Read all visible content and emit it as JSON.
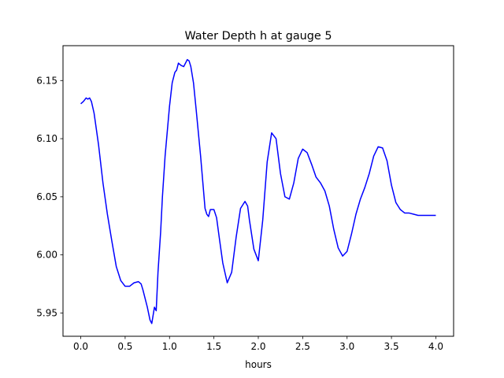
{
  "chart_data": {
    "type": "line",
    "title": "Water Depth h at gauge 5",
    "xlabel": "hours",
    "ylabel": "",
    "xlim": [
      -0.2,
      4.2
    ],
    "ylim": [
      5.93,
      6.18
    ],
    "xticks": [
      0.0,
      0.5,
      1.0,
      1.5,
      2.0,
      2.5,
      3.0,
      3.5,
      4.0
    ],
    "xtick_labels": [
      "0.0",
      "0.5",
      "1.0",
      "1.5",
      "2.0",
      "2.5",
      "3.0",
      "3.5",
      "4.0"
    ],
    "yticks": [
      5.95,
      6.0,
      6.05,
      6.1,
      6.15
    ],
    "ytick_labels": [
      "5.95",
      "6.00",
      "6.05",
      "6.10",
      "6.15"
    ],
    "grid": false,
    "series": [
      {
        "color": "#0000ff",
        "x": [
          0.0,
          0.03,
          0.06,
          0.08,
          0.1,
          0.12,
          0.15,
          0.2,
          0.25,
          0.3,
          0.35,
          0.4,
          0.45,
          0.5,
          0.55,
          0.6,
          0.65,
          0.68,
          0.7,
          0.75,
          0.78,
          0.8,
          0.83,
          0.85,
          0.87,
          0.9,
          0.92,
          0.95,
          1.0,
          1.03,
          1.06,
          1.08,
          1.1,
          1.13,
          1.16,
          1.2,
          1.22,
          1.24,
          1.27,
          1.3,
          1.35,
          1.4,
          1.42,
          1.44,
          1.46,
          1.5,
          1.53,
          1.56,
          1.6,
          1.65,
          1.7,
          1.75,
          1.8,
          1.85,
          1.88,
          1.9,
          1.95,
          2.0,
          2.05,
          2.1,
          2.15,
          2.2,
          2.25,
          2.3,
          2.35,
          2.4,
          2.45,
          2.5,
          2.55,
          2.6,
          2.65,
          2.7,
          2.75,
          2.8,
          2.85,
          2.9,
          2.95,
          3.0,
          3.05,
          3.1,
          3.15,
          3.2,
          3.25,
          3.3,
          3.35,
          3.4,
          3.45,
          3.5,
          3.55,
          3.6,
          3.65,
          3.7,
          3.75,
          3.8,
          3.85,
          3.9,
          3.95,
          4.0
        ],
        "y": [
          6.13,
          6.132,
          6.135,
          6.134,
          6.135,
          6.132,
          6.122,
          6.095,
          6.062,
          6.035,
          6.012,
          5.99,
          5.978,
          5.973,
          5.973,
          5.976,
          5.977,
          5.975,
          5.97,
          5.955,
          5.944,
          5.941,
          5.955,
          5.952,
          5.985,
          6.02,
          6.05,
          6.085,
          6.128,
          6.148,
          6.157,
          6.159,
          6.165,
          6.163,
          6.162,
          6.168,
          6.167,
          6.162,
          6.148,
          6.125,
          6.085,
          6.04,
          6.035,
          6.033,
          6.039,
          6.039,
          6.032,
          6.015,
          5.993,
          5.976,
          5.985,
          6.015,
          6.04,
          6.046,
          6.042,
          6.03,
          6.005,
          5.995,
          6.03,
          6.08,
          6.105,
          6.1,
          6.07,
          6.05,
          6.048,
          6.062,
          6.083,
          6.091,
          6.088,
          6.078,
          6.067,
          6.062,
          6.055,
          6.042,
          6.022,
          6.006,
          5.999,
          6.003,
          6.018,
          6.035,
          6.048,
          6.058,
          6.07,
          6.085,
          6.093,
          6.092,
          6.081,
          6.06,
          6.045,
          6.039,
          6.036,
          6.036,
          6.035,
          6.034,
          6.034,
          6.034,
          6.034,
          6.034
        ]
      }
    ]
  }
}
